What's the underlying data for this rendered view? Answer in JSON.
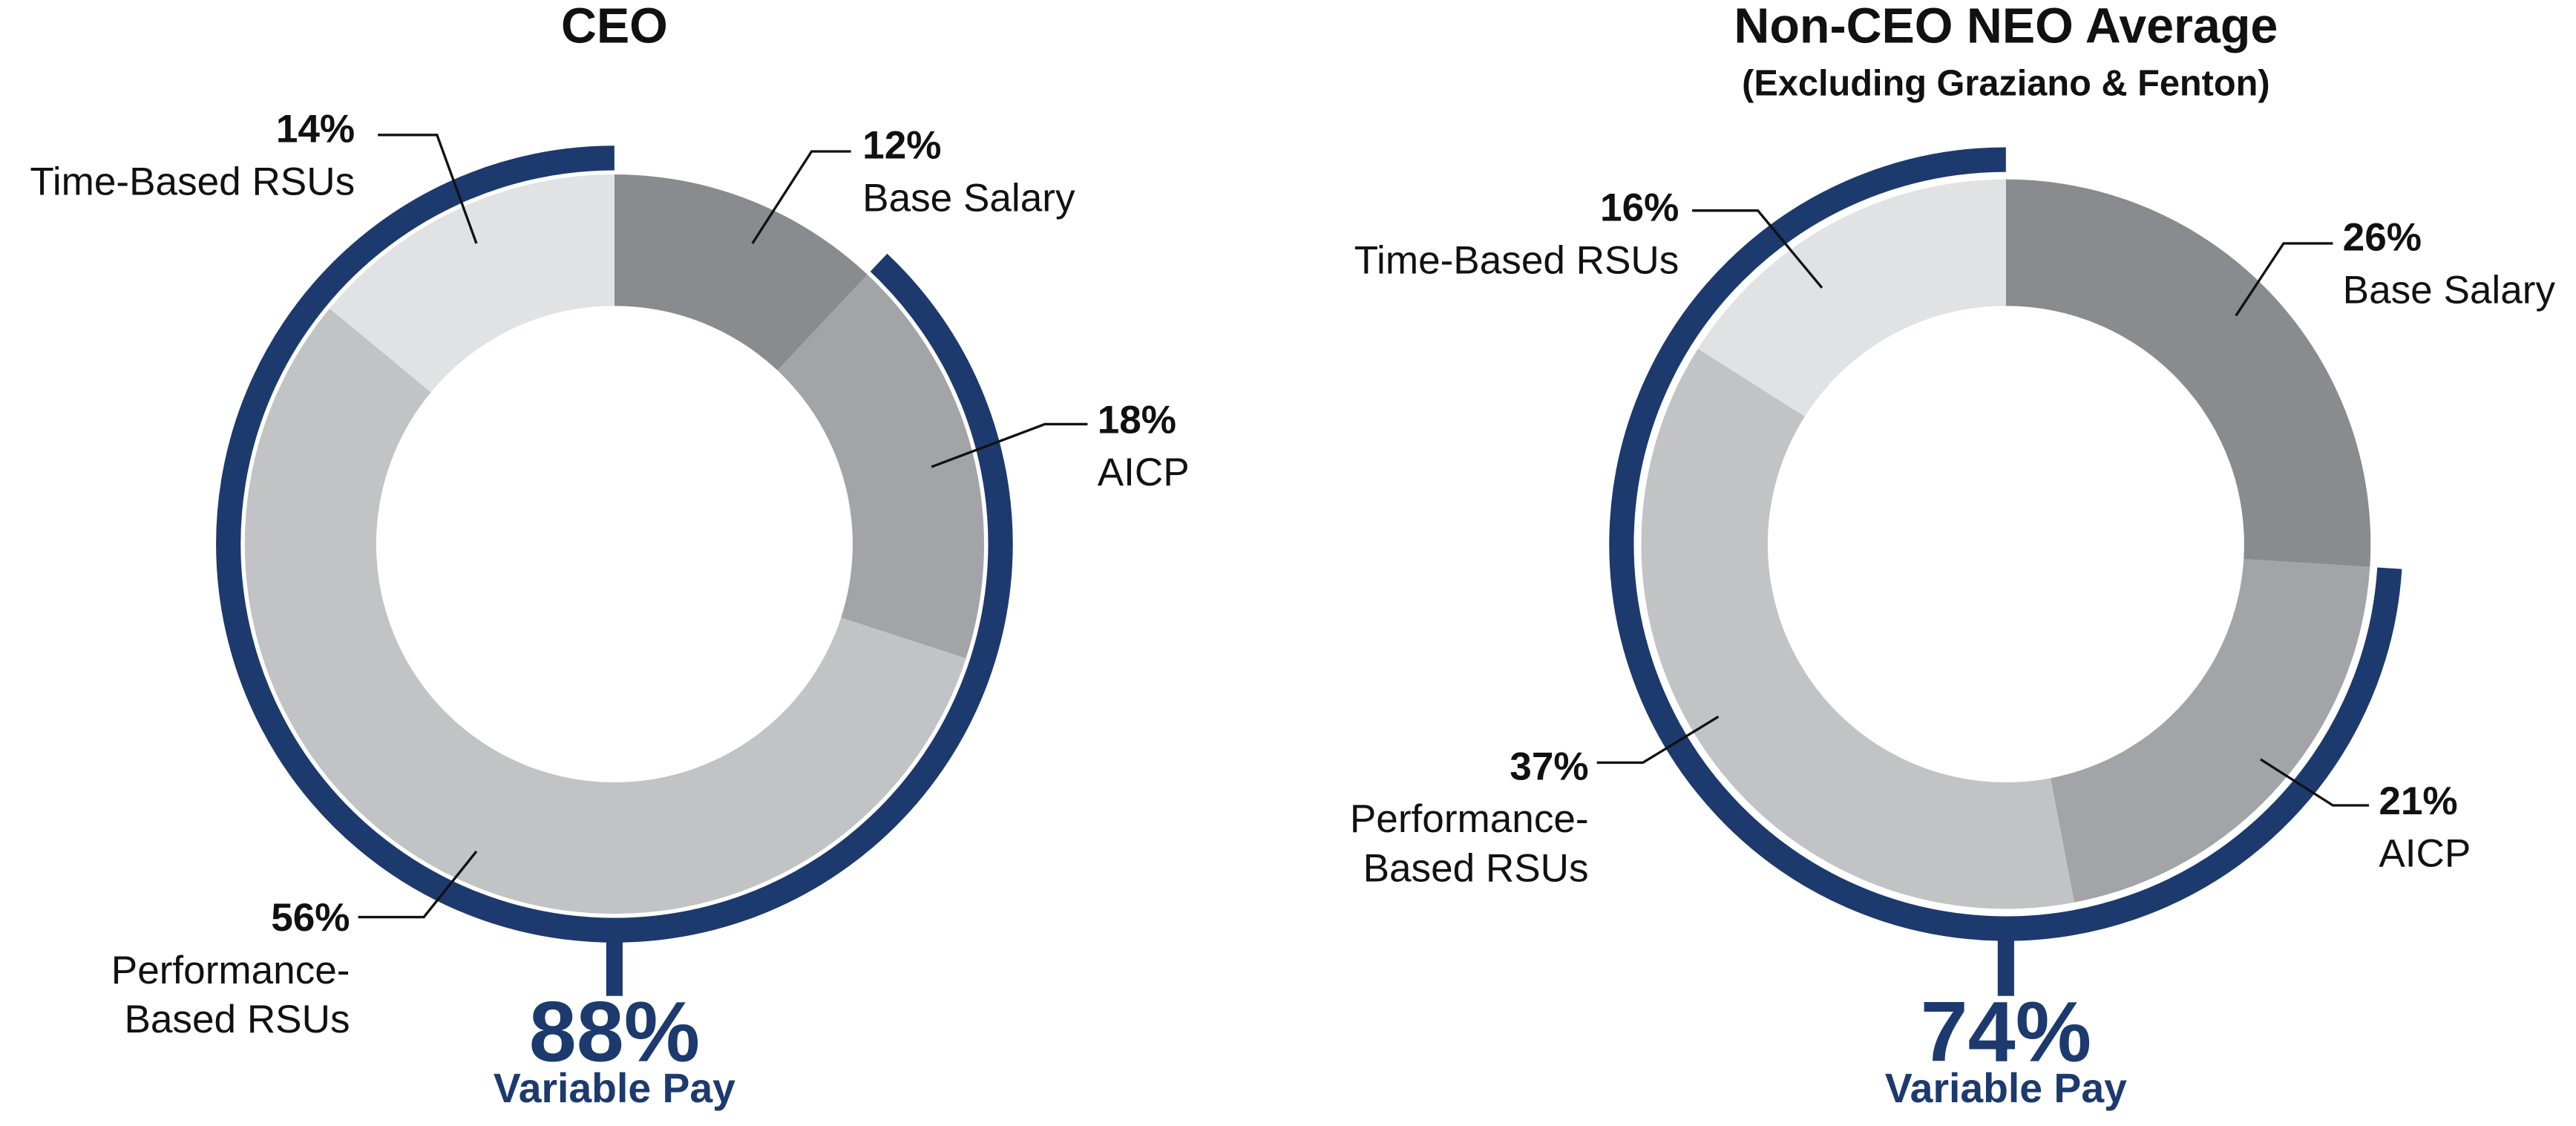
{
  "chart_data": [
    {
      "type": "donut",
      "title": "CEO",
      "categories": [
        [
          "Base Salary"
        ],
        [
          "AICP"
        ],
        [
          "Performance-",
          "Based RSUs"
        ],
        [
          "Time-Based RSUs"
        ]
      ],
      "values": [
        12,
        18,
        56,
        14
      ],
      "value_labels": [
        "12%",
        "18%",
        "56%",
        "14%"
      ],
      "colors": [
        "#8a8b8e",
        "#a3a4a7",
        "#c2c3c5",
        "#e1e2e3"
      ],
      "annotation": {
        "value": 88,
        "value_label": "88%",
        "text": "Variable Pay",
        "color": "#1c3a6e"
      }
    },
    {
      "type": "donut",
      "title": "Non-CEO NEO Average",
      "subtitle": "(Excluding Graziano & Fenton)",
      "categories": [
        [
          "Base Salary"
        ],
        [
          "AICP"
        ],
        [
          "Performance-",
          "Based RSUs"
        ],
        [
          "Time-Based RSUs"
        ]
      ],
      "values": [
        26,
        21,
        37,
        16
      ],
      "value_labels": [
        "26%",
        "21%",
        "37%",
        "16%"
      ],
      "colors": [
        "#8a8b8e",
        "#a3a4a7",
        "#c2c3c5",
        "#e1e2e3"
      ],
      "annotation": {
        "value": 74,
        "value_label": "74%",
        "text": "Variable Pay",
        "color": "#1c3a6e"
      }
    }
  ]
}
